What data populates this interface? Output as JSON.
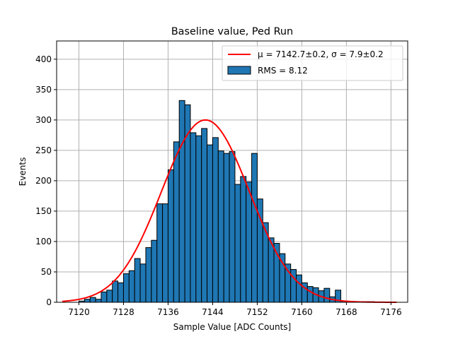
{
  "chart_data": {
    "type": "bar",
    "title": "Baseline value, Ped Run",
    "xlabel": "Sample Value [ADC Counts]",
    "ylabel": "Events",
    "xlim": [
      7116,
      7179
    ],
    "ylim": [
      0,
      430
    ],
    "xticks": [
      7120,
      7128,
      7136,
      7144,
      7152,
      7160,
      7168,
      7176
    ],
    "yticks": [
      0,
      50,
      100,
      150,
      200,
      250,
      300,
      350,
      400
    ],
    "grid": true,
    "legend_position": "top-right",
    "bin_width": 1,
    "histogram": {
      "name": "RMS = 8.12",
      "color": "#1f77b4",
      "edge_color": "#000000",
      "bin_starts": [
        7120,
        7121,
        7122,
        7123,
        7124,
        7125,
        7126,
        7127,
        7128,
        7129,
        7130,
        7131,
        7132,
        7133,
        7134,
        7135,
        7136,
        7137,
        7138,
        7139,
        7140,
        7141,
        7142,
        7143,
        7144,
        7145,
        7146,
        7147,
        7148,
        7149,
        7150,
        7151,
        7152,
        7153,
        7154,
        7155,
        7156,
        7157,
        7158,
        7159,
        7160,
        7161,
        7162,
        7163,
        7164,
        7165,
        7166,
        7167,
        7168,
        7169,
        7170,
        7171,
        7172
      ],
      "counts": [
        2,
        5,
        8,
        5,
        17,
        20,
        35,
        32,
        47,
        52,
        72,
        63,
        90,
        102,
        162,
        162,
        218,
        264,
        332,
        325,
        279,
        274,
        286,
        259,
        271,
        249,
        245,
        248,
        194,
        207,
        198,
        245,
        170,
        131,
        106,
        97,
        80,
        63,
        54,
        45,
        32,
        26,
        24,
        19,
        23,
        9,
        20,
        2,
        1,
        1,
        1,
        1,
        1
      ]
    },
    "fit": {
      "name_prefix": "μ = 7142.7±0.2, σ = 7.9±0.2",
      "mu": 7142.7,
      "sigma": 7.9,
      "amplitude": 300,
      "x_range": [
        7117,
        7177
      ],
      "color": "#ff0000"
    }
  }
}
